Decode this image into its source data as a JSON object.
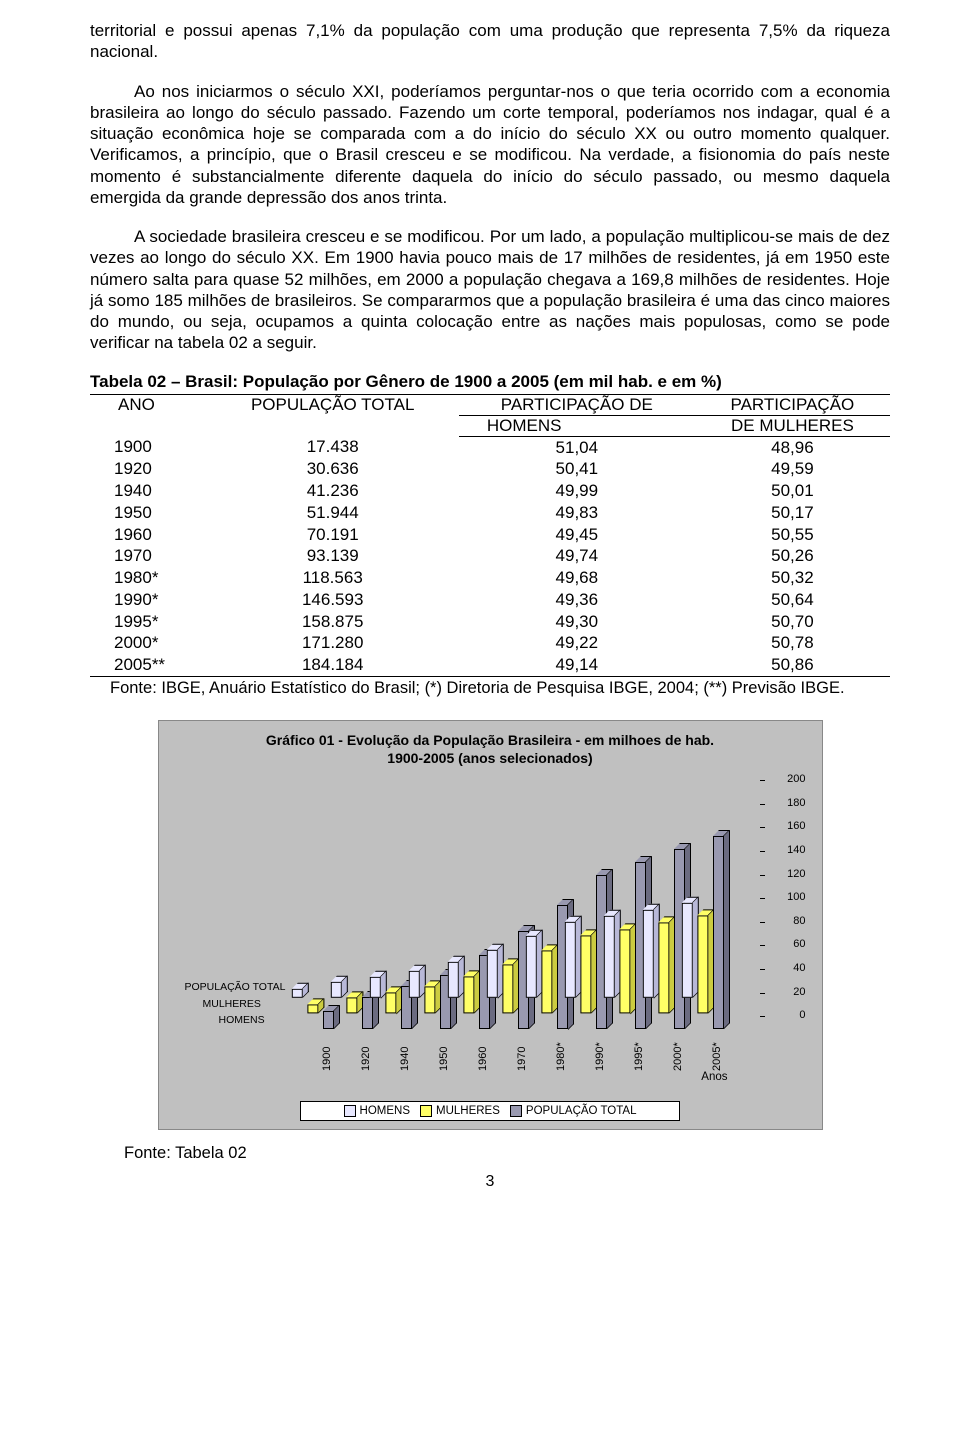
{
  "paragraphs": {
    "p1": "territorial e possui apenas 7,1% da população com uma produção que representa 7,5% da riqueza nacional.",
    "p2": "Ao nos iniciarmos o século XXI, poderíamos perguntar-nos o que teria ocorrido com a economia brasileira ao longo do século passado. Fazendo um corte temporal, poderíamos nos indagar, qual é a situação econômica hoje se comparada com a do início do século XX ou outro momento qualquer. Verificamos, a princípio, que o Brasil cresceu e se modificou. Na verdade, a fisionomia do país neste momento é substancialmente diferente daquela do início do século passado, ou mesmo daquela emergida da grande depressão dos anos trinta.",
    "p3": "A sociedade brasileira cresceu e se modificou. Por um lado, a população multiplicou-se mais de dez vezes ao longo do século XX. Em 1900 havia pouco mais de 17 milhões de residentes, já em 1950 este número salta para quase 52 milhões, em 2000 a população chegava a 169,8 milhões de residentes. Hoje já somo 185 milhões de brasileiros. Se compararmos que a população brasileira é uma das cinco maiores do mundo, ou seja, ocupamos a quinta colocação entre as nações mais populosas, como se pode verificar na tabela 02 a seguir."
  },
  "table": {
    "title": "Tabela 02 – Brasil: População por Gênero de 1900 a 2005 (em mil hab. e em %)",
    "columns": [
      "ANO",
      "POPULAÇÃO TOTAL",
      "PARTICIPAÇÃO DE HOMENS",
      "PARTICIPAÇÃO DE MULHERES"
    ],
    "rows": [
      [
        "1900",
        "17.438",
        "51,04",
        "48,96"
      ],
      [
        "1920",
        "30.636",
        "50,41",
        "49,59"
      ],
      [
        "1940",
        "41.236",
        "49,99",
        "50,01"
      ],
      [
        "1950",
        "51.944",
        "49,83",
        "50,17"
      ],
      [
        "1960",
        "70.191",
        "49,45",
        "50,55"
      ],
      [
        "1970",
        "93.139",
        "49,74",
        "50,26"
      ],
      [
        "1980*",
        "118.563",
        "49,68",
        "50,32"
      ],
      [
        "1990*",
        "146.593",
        "49,36",
        "50,64"
      ],
      [
        "1995*",
        "158.875",
        "49,30",
        "50,70"
      ],
      [
        "2000*",
        "171.280",
        "49,22",
        "50,78"
      ],
      [
        "2005**",
        "184.184",
        "49,14",
        "50,86"
      ]
    ],
    "source": "Fonte: IBGE, Anuário Estatístico do Brasil; (*) Diretoria de Pesquisa IBGE, 2004; (**) Previsão IBGE."
  },
  "chart": {
    "title_line1": "Gráfico 01 - Evolução da População Brasileira - em milhoes de hab.",
    "title_line2": "1900-2005 (anos selecionados)",
    "categories": [
      "1900",
      "1920",
      "1940",
      "1950",
      "1960",
      "1970",
      "1980*",
      "1990*",
      "1995*",
      "2000*",
      "2005*"
    ],
    "series": [
      {
        "name": "HOMENS",
        "color": "#e8e8ff",
        "side_color": "#b8b8d8",
        "values": [
          8.9,
          15.4,
          20.6,
          25.9,
          34.7,
          46.3,
          58.9,
          72.4,
          78.3,
          84.3,
          90.5
        ]
      },
      {
        "name": "MULHERES",
        "color": "#ffff66",
        "side_color": "#cccc40",
        "values": [
          8.5,
          15.2,
          20.6,
          26.1,
          35.5,
          46.8,
          59.7,
          74.2,
          80.6,
          87.0,
          93.7
        ]
      },
      {
        "name": "POPULAÇÃO TOTAL",
        "color": "#9999b0",
        "side_color": "#6b6b80",
        "values": [
          17.4,
          30.6,
          41.2,
          51.9,
          70.2,
          93.1,
          118.6,
          146.6,
          158.9,
          171.3,
          184.2
        ]
      }
    ],
    "ymax": 200,
    "ytick_step": 20,
    "xaxis_title": "Anos",
    "legend": [
      "HOMENS",
      "MULHERES",
      "POPULAÇÃO TOTAL"
    ],
    "series_side_labels": [
      "POPULAÇÃO TOTAL",
      "MULHERES",
      "HOMENS"
    ],
    "source": "Fonte: Tabela 02"
  },
  "page_number": "3"
}
